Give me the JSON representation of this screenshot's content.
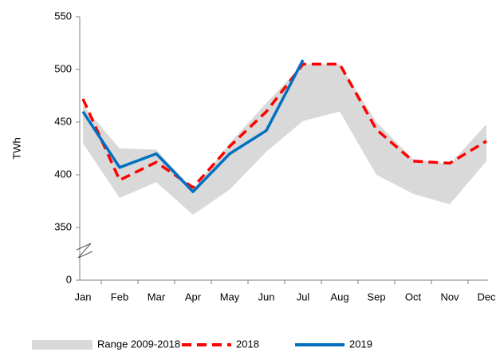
{
  "chart_data": {
    "type": "line",
    "y_label": "TWh",
    "categories": [
      "Jan",
      "Feb",
      "Mar",
      "Apr",
      "May",
      "Jun",
      "Jul",
      "Aug",
      "Sep",
      "Oct",
      "Nov",
      "Dec"
    ],
    "range": {
      "name": "Range 2009-2018",
      "color": "#d9d9d9",
      "high": [
        466,
        425,
        424,
        386,
        430,
        468,
        505,
        505,
        450,
        415,
        410,
        448
      ],
      "low": [
        430,
        378,
        393,
        362,
        386,
        422,
        451,
        460,
        400,
        382,
        372,
        413
      ]
    },
    "series": [
      {
        "name": "2018",
        "color": "#ff0000",
        "dashed": true,
        "values": [
          472,
          395,
          412,
          388,
          427,
          460,
          505,
          505,
          443,
          413,
          411,
          432
        ]
      },
      {
        "name": "2019",
        "color": "#0070c0",
        "dashed": false,
        "values": [
          460,
          407,
          420,
          384,
          420,
          442,
          509,
          null,
          null,
          null,
          null,
          null
        ]
      }
    ],
    "ylim": [
      0,
      550
    ],
    "y_break": [
      0,
      350
    ],
    "yticks": [
      0,
      350,
      400,
      450,
      500,
      550
    ],
    "legend": "bottom"
  }
}
